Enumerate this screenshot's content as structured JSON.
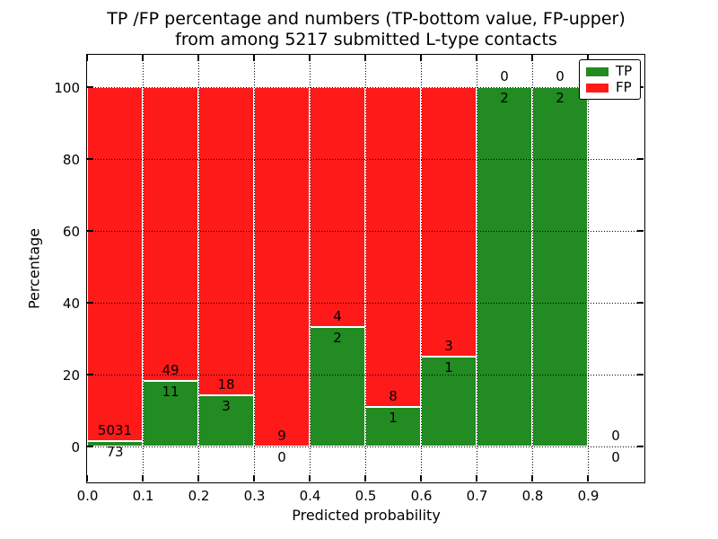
{
  "chart_data": {
    "type": "bar",
    "stacked": true,
    "title_line1": "TP /FP percentage and numbers (TP-bottom value, FP-upper)",
    "title_line2": "from among 5217 submitted L-type contacts",
    "total_submitted": 5217,
    "xlabel": "Predicted probability",
    "ylabel": "Percentage",
    "xlim": [
      0.0,
      1.0
    ],
    "ylim": [
      -10,
      110
    ],
    "xticks": [
      "0.0",
      "0.1",
      "0.2",
      "0.3",
      "0.4",
      "0.5",
      "0.6",
      "0.7",
      "0.8",
      "0.9"
    ],
    "yticks": [
      "0",
      "20",
      "40",
      "60",
      "80",
      "100"
    ],
    "grid": "dotted",
    "legend_position": "upper right",
    "colors": {
      "tp": "#228b22",
      "fp": "#ff1a1a",
      "bar_edge": "#ffffff",
      "text": "#000000"
    },
    "legend": [
      {
        "key": "tp",
        "label": "TP",
        "color": "#228b22"
      },
      {
        "key": "fp",
        "label": "FP",
        "color": "#ff1a1a"
      }
    ],
    "bins": [
      {
        "range": [
          0.0,
          0.1
        ],
        "tp_count": 73,
        "fp_count": 5031,
        "tp_pct": 1.43,
        "has_bar": true
      },
      {
        "range": [
          0.1,
          0.2
        ],
        "tp_count": 11,
        "fp_count": 49,
        "tp_pct": 18.33,
        "has_bar": true
      },
      {
        "range": [
          0.2,
          0.3
        ],
        "tp_count": 3,
        "fp_count": 18,
        "tp_pct": 14.29,
        "has_bar": true
      },
      {
        "range": [
          0.3,
          0.4
        ],
        "tp_count": 0,
        "fp_count": 9,
        "tp_pct": 0.0,
        "has_bar": true
      },
      {
        "range": [
          0.4,
          0.5
        ],
        "tp_count": 2,
        "fp_count": 4,
        "tp_pct": 33.33,
        "has_bar": true
      },
      {
        "range": [
          0.5,
          0.6
        ],
        "tp_count": 1,
        "fp_count": 8,
        "tp_pct": 11.11,
        "has_bar": true
      },
      {
        "range": [
          0.6,
          0.7
        ],
        "tp_count": 1,
        "fp_count": 3,
        "tp_pct": 25.0,
        "has_bar": true
      },
      {
        "range": [
          0.7,
          0.8
        ],
        "tp_count": 2,
        "fp_count": 0,
        "tp_pct": 100.0,
        "has_bar": true
      },
      {
        "range": [
          0.8,
          0.9
        ],
        "tp_count": 2,
        "fp_count": 0,
        "tp_pct": 100.0,
        "has_bar": true
      },
      {
        "range": [
          0.9,
          1.0
        ],
        "tp_count": 0,
        "fp_count": 0,
        "tp_pct": null,
        "has_bar": false
      }
    ]
  }
}
